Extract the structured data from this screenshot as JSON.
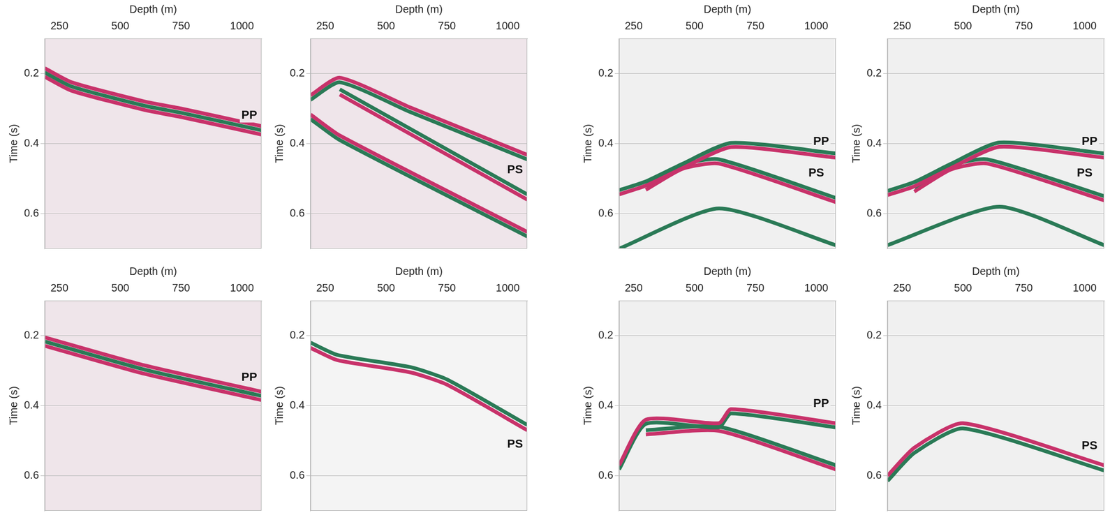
{
  "chart_data": [
    {
      "type": "line",
      "x_label": "Depth (m)",
      "y_label": "Time (s)",
      "xlim": [
        190,
        1080
      ],
      "xticks": [
        250,
        500,
        750,
        1000
      ],
      "ylim": [
        0.1,
        0.7
      ],
      "yticks": [
        0.2,
        0.4,
        0.6
      ],
      "grid": "y",
      "series": [
        {
          "color": "#c8326a",
          "x": [
            190,
            300,
            600,
            750,
            1080
          ],
          "values": [
            0.185,
            0.225,
            0.28,
            0.3,
            0.35
          ]
        },
        {
          "color": "#2a7a56",
          "x": [
            190,
            300,
            600,
            750,
            1080
          ],
          "values": [
            0.197,
            0.237,
            0.292,
            0.312,
            0.362
          ]
        },
        {
          "color": "#c8326a",
          "x": [
            190,
            300,
            600,
            750,
            1080
          ],
          "values": [
            0.209,
            0.249,
            0.304,
            0.324,
            0.374
          ]
        }
      ],
      "annotations": [
        {
          "text": "PP",
          "x": 1030,
          "y": 0.32
        }
      ]
    },
    {
      "type": "line",
      "x_label": "Depth (m)",
      "y_label": "Time (s)",
      "xlim": [
        190,
        1080
      ],
      "xticks": [
        250,
        500,
        750,
        1000
      ],
      "ylim": [
        0.1,
        0.7
      ],
      "yticks": [
        0.2,
        0.4,
        0.6
      ],
      "grid": "y",
      "series": [
        {
          "color": "#c8326a",
          "x": [
            190,
            310,
            600,
            1080
          ],
          "values": [
            0.262,
            0.212,
            0.297,
            0.432
          ]
        },
        {
          "color": "#2a7a56",
          "x": [
            190,
            310,
            600,
            1080
          ],
          "values": [
            0.275,
            0.225,
            0.31,
            0.445
          ]
        },
        {
          "color": "#2a7a56",
          "x": [
            310,
            1080
          ],
          "values": [
            0.245,
            0.545
          ]
        },
        {
          "color": "#c8326a",
          "x": [
            310,
            1080
          ],
          "values": [
            0.26,
            0.56
          ]
        },
        {
          "color": "#c8326a",
          "x": [
            190,
            310,
            1080
          ],
          "values": [
            0.317,
            0.377,
            0.652
          ]
        },
        {
          "color": "#2a7a56",
          "x": [
            190,
            310,
            1080
          ],
          "values": [
            0.33,
            0.39,
            0.665
          ]
        }
      ],
      "annotations": [
        {
          "text": "PS",
          "x": 1030,
          "y": 0.475
        }
      ]
    },
    {
      "type": "line",
      "x_label": "Depth (m)",
      "y_label": "Time (s)",
      "xlim": [
        190,
        1080
      ],
      "xticks": [
        250,
        500,
        750,
        1000
      ],
      "ylim": [
        0.1,
        0.7
      ],
      "yticks": [
        0.2,
        0.4,
        0.6
      ],
      "grid": "y",
      "series": [
        {
          "color": "#2a7a56",
          "x": [
            190,
            300,
            450,
            650,
            1080
          ],
          "values": [
            0.533,
            0.508,
            0.458,
            0.398,
            0.428
          ]
        },
        {
          "color": "#c8326a",
          "x": [
            190,
            300,
            450,
            650,
            1080
          ],
          "values": [
            0.545,
            0.52,
            0.47,
            0.41,
            0.44
          ]
        },
        {
          "color": "#2a7a56",
          "x": [
            300,
            450,
            600,
            1080
          ],
          "values": [
            0.52,
            0.46,
            0.445,
            0.555
          ]
        },
        {
          "color": "#c8326a",
          "x": [
            300,
            450,
            600,
            1080
          ],
          "values": [
            0.532,
            0.472,
            0.457,
            0.567
          ]
        },
        {
          "color": "#2a7a56",
          "x": [
            190,
            600,
            1080
          ],
          "values": [
            0.7,
            0.585,
            0.69
          ]
        }
      ],
      "annotations": [
        {
          "text": "PP",
          "x": 1020,
          "y": 0.395
        },
        {
          "text": "PS",
          "x": 1000,
          "y": 0.485
        }
      ]
    },
    {
      "type": "line",
      "x_label": "Depth (m)",
      "y_label": "Time (s)",
      "xlim": [
        190,
        1080
      ],
      "xticks": [
        250,
        500,
        750,
        1000
      ],
      "ylim": [
        0.1,
        0.7
      ],
      "yticks": [
        0.2,
        0.4,
        0.6
      ],
      "grid": "y",
      "series": [
        {
          "color": "#2a7a56",
          "x": [
            190,
            300,
            450,
            650,
            1080
          ],
          "values": [
            0.535,
            0.51,
            0.458,
            0.397,
            0.428
          ]
        },
        {
          "color": "#c8326a",
          "x": [
            190,
            300,
            450,
            650,
            1080
          ],
          "values": [
            0.547,
            0.522,
            0.47,
            0.409,
            0.44
          ]
        },
        {
          "color": "#2a7a56",
          "x": [
            300,
            450,
            600,
            1080
          ],
          "values": [
            0.525,
            0.462,
            0.445,
            0.55
          ]
        },
        {
          "color": "#c8326a",
          "x": [
            300,
            450,
            600,
            1080
          ],
          "values": [
            0.537,
            0.474,
            0.457,
            0.562
          ]
        },
        {
          "color": "#2a7a56",
          "x": [
            190,
            650,
            1080
          ],
          "values": [
            0.69,
            0.58,
            0.69
          ]
        }
      ],
      "annotations": [
        {
          "text": "PP",
          "x": 1020,
          "y": 0.395
        },
        {
          "text": "PS",
          "x": 1000,
          "y": 0.485
        }
      ]
    },
    {
      "type": "line",
      "x_label": "Depth (m)",
      "y_label": "Time (s)",
      "xlim": [
        190,
        1080
      ],
      "xticks": [
        250,
        500,
        750,
        1000
      ],
      "ylim": [
        0.1,
        0.7
      ],
      "yticks": [
        0.2,
        0.4,
        0.6
      ],
      "grid": "y",
      "series": [
        {
          "color": "#c8326a",
          "x": [
            190,
            600,
            1080
          ],
          "values": [
            0.205,
            0.285,
            0.36
          ]
        },
        {
          "color": "#2a7a56",
          "x": [
            190,
            600,
            1080
          ],
          "values": [
            0.217,
            0.297,
            0.372
          ]
        },
        {
          "color": "#c8326a",
          "x": [
            190,
            600,
            1080
          ],
          "values": [
            0.229,
            0.309,
            0.384
          ]
        }
      ],
      "annotations": [
        {
          "text": "PP",
          "x": 1030,
          "y": 0.32
        }
      ]
    },
    {
      "type": "line",
      "x_label": "Depth (m)",
      "y_label": "Time (s)",
      "xlim": [
        190,
        1080
      ],
      "xticks": [
        250,
        500,
        750,
        1000
      ],
      "ylim": [
        0.1,
        0.7
      ],
      "yticks": [
        0.2,
        0.4,
        0.6
      ],
      "grid": "y",
      "series": [
        {
          "color": "#2a7a56",
          "x": [
            190,
            300,
            600,
            750,
            1080
          ],
          "values": [
            0.22,
            0.255,
            0.29,
            0.325,
            0.455
          ]
        },
        {
          "color": "#c8326a",
          "x": [
            190,
            300,
            600,
            750,
            1080
          ],
          "values": [
            0.235,
            0.27,
            0.305,
            0.34,
            0.47
          ]
        }
      ],
      "annotations": [
        {
          "text": "PS",
          "x": 1030,
          "y": 0.51
        }
      ]
    },
    {
      "type": "line",
      "x_label": "Depth (m)",
      "y_label": "Time (s)",
      "xlim": [
        190,
        1080
      ],
      "xticks": [
        250,
        500,
        750,
        1000
      ],
      "ylim": [
        0.1,
        0.7
      ],
      "yticks": [
        0.2,
        0.4,
        0.6
      ],
      "grid": "y",
      "series": [
        {
          "color": "#c8326a",
          "x": [
            190,
            300,
            600,
            650,
            1080
          ],
          "values": [
            0.57,
            0.44,
            0.45,
            0.41,
            0.45
          ]
        },
        {
          "color": "#2a7a56",
          "x": [
            190,
            300,
            600,
            650,
            1080
          ],
          "values": [
            0.582,
            0.452,
            0.462,
            0.422,
            0.462
          ]
        },
        {
          "color": "#2a7a56",
          "x": [
            300,
            600,
            1080
          ],
          "values": [
            0.47,
            0.46,
            0.57
          ]
        },
        {
          "color": "#c8326a",
          "x": [
            300,
            600,
            1080
          ],
          "values": [
            0.482,
            0.472,
            0.582
          ]
        }
      ],
      "annotations": [
        {
          "text": "PP",
          "x": 1020,
          "y": 0.395
        }
      ]
    },
    {
      "type": "line",
      "x_label": "Depth (m)",
      "y_label": "Time (s)",
      "xlim": [
        190,
        1080
      ],
      "xticks": [
        250,
        500,
        750,
        1000
      ],
      "ylim": [
        0.1,
        0.7
      ],
      "yticks": [
        0.2,
        0.4,
        0.6
      ],
      "grid": "y",
      "series": [
        {
          "color": "#c8326a",
          "x": [
            190,
            300,
            500,
            1080
          ],
          "values": [
            0.6,
            0.52,
            0.45,
            0.57
          ]
        },
        {
          "color": "#2a7a56",
          "x": [
            190,
            300,
            500,
            1080
          ],
          "values": [
            0.615,
            0.535,
            0.465,
            0.585
          ]
        }
      ],
      "annotations": [
        {
          "text": "PS",
          "x": 1020,
          "y": 0.515
        }
      ]
    }
  ]
}
